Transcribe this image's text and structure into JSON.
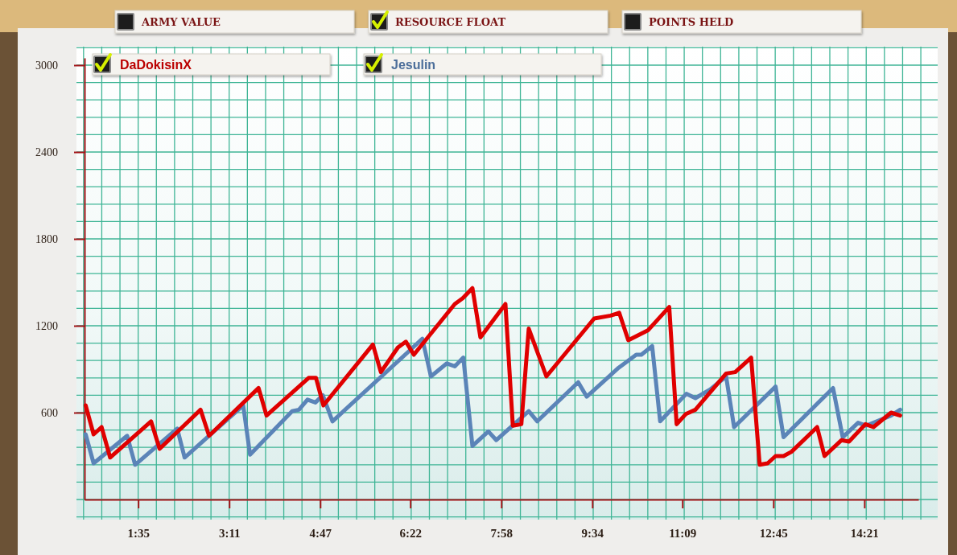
{
  "chart_data": {
    "type": "line",
    "annotations": [
      "ARMY VALUE",
      "RESOURCE FLOAT",
      "POINTS HELD"
    ],
    "series": [
      {
        "name": "DaDokisinX",
        "color": "#e00000",
        "x": [
          0.66,
          0.8,
          0.94,
          1.09,
          1.81,
          1.96,
          2.68,
          2.83,
          3.7,
          3.84,
          4.58,
          4.71,
          4.84,
          5.71,
          5.85,
          6.15,
          6.29,
          6.43,
          7.15,
          7.29,
          7.46,
          7.6,
          8.04,
          8.17,
          8.32,
          8.45,
          8.76,
          9.6,
          9.89,
          10.04,
          10.2,
          10.55,
          10.92,
          11.05,
          11.21,
          11.38,
          11.92,
          12.08,
          12.36,
          12.51,
          12.65,
          12.79,
          12.93,
          13.07,
          13.52,
          13.65,
          13.95,
          14.08,
          14.37,
          14.51,
          14.82,
          14.98
        ],
        "values": [
          650,
          450,
          500,
          290,
          540,
          350,
          620,
          440,
          770,
          580,
          840,
          840,
          650,
          1070,
          880,
          1050,
          1090,
          1000,
          1350,
          1390,
          1460,
          1120,
          1350,
          510,
          520,
          1180,
          850,
          1250,
          1270,
          1290,
          1100,
          1170,
          1330,
          520,
          590,
          620,
          870,
          880,
          980,
          240,
          250,
          300,
          300,
          330,
          500,
          300,
          410,
          400,
          520,
          500,
          600,
          580
        ]
      },
      {
        "name": "Jesulin",
        "color": "#5b84b8",
        "x": [
          0.66,
          0.8,
          1.39,
          1.53,
          2.27,
          2.4,
          3.43,
          3.55,
          4.29,
          4.41,
          4.56,
          4.7,
          4.83,
          5.0,
          6.58,
          6.73,
          7.01,
          7.15,
          7.3,
          7.46,
          7.74,
          7.88,
          8.45,
          8.6,
          9.32,
          9.47,
          10.03,
          10.34,
          10.43,
          10.62,
          10.76,
          11.22,
          11.38,
          11.64,
          11.92,
          12.06,
          12.79,
          12.93,
          13.8,
          13.97,
          14.24,
          14.38,
          14.82,
          14.98
        ],
        "values": [
          450,
          250,
          440,
          240,
          490,
          290,
          650,
          310,
          610,
          620,
          690,
          670,
          720,
          540,
          1110,
          850,
          940,
          920,
          980,
          370,
          470,
          410,
          610,
          540,
          810,
          710,
          910,
          1000,
          1000,
          1060,
          540,
          730,
          700,
          760,
          850,
          500,
          780,
          430,
          770,
          430,
          530,
          510,
          580,
          620
        ]
      }
    ],
    "xlim": [
      0.64,
      15.3
    ],
    "ylim": [
      0,
      3050
    ],
    "xticks": [
      {
        "value": 1.5833,
        "label": "1:35"
      },
      {
        "value": 3.1833,
        "label": "3:11"
      },
      {
        "value": 4.7833,
        "label": "4:47"
      },
      {
        "value": 6.3667,
        "label": "6:22"
      },
      {
        "value": 7.9667,
        "label": "7:58"
      },
      {
        "value": 9.5667,
        "label": "9:34"
      },
      {
        "value": 11.15,
        "label": "11:09"
      },
      {
        "value": 12.75,
        "label": "12:45"
      },
      {
        "value": 14.35,
        "label": "14:21"
      }
    ],
    "yticks": [
      600,
      1200,
      1800,
      2400,
      3000
    ],
    "grid": true,
    "legend": "top left",
    "line_style": "solid"
  }
}
